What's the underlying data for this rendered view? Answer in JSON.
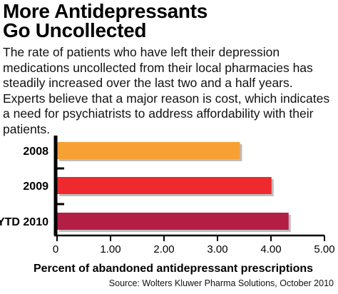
{
  "header": {
    "title_lines": [
      "More Antidepressants",
      "Go Uncollected"
    ],
    "description": "The rate of patients who have left their depression medications uncollected from their local pharmacies has steadily increased over the last two and a half years. Experts believe that a major reason is cost, which indicates a need for psychiatrists to address affordability with their patients."
  },
  "source": "Source: Wolters Kluwer Pharma Solutions, October 2010",
  "chart_data": {
    "type": "bar",
    "orientation": "horizontal",
    "categories": [
      "2008",
      "2009",
      "YTD 2010"
    ],
    "values": [
      3.42,
      4.01,
      4.33
    ],
    "bar_colors": [
      "#F7A134",
      "#EE2A2F",
      "#B31E47"
    ],
    "xlabel": "Percent of abandoned antidepressant prescriptions",
    "xlim": [
      0,
      5
    ],
    "xticks": [
      "0",
      "1.00",
      "2.00",
      "3.00",
      "4.00",
      "5.00"
    ],
    "grid": false
  }
}
